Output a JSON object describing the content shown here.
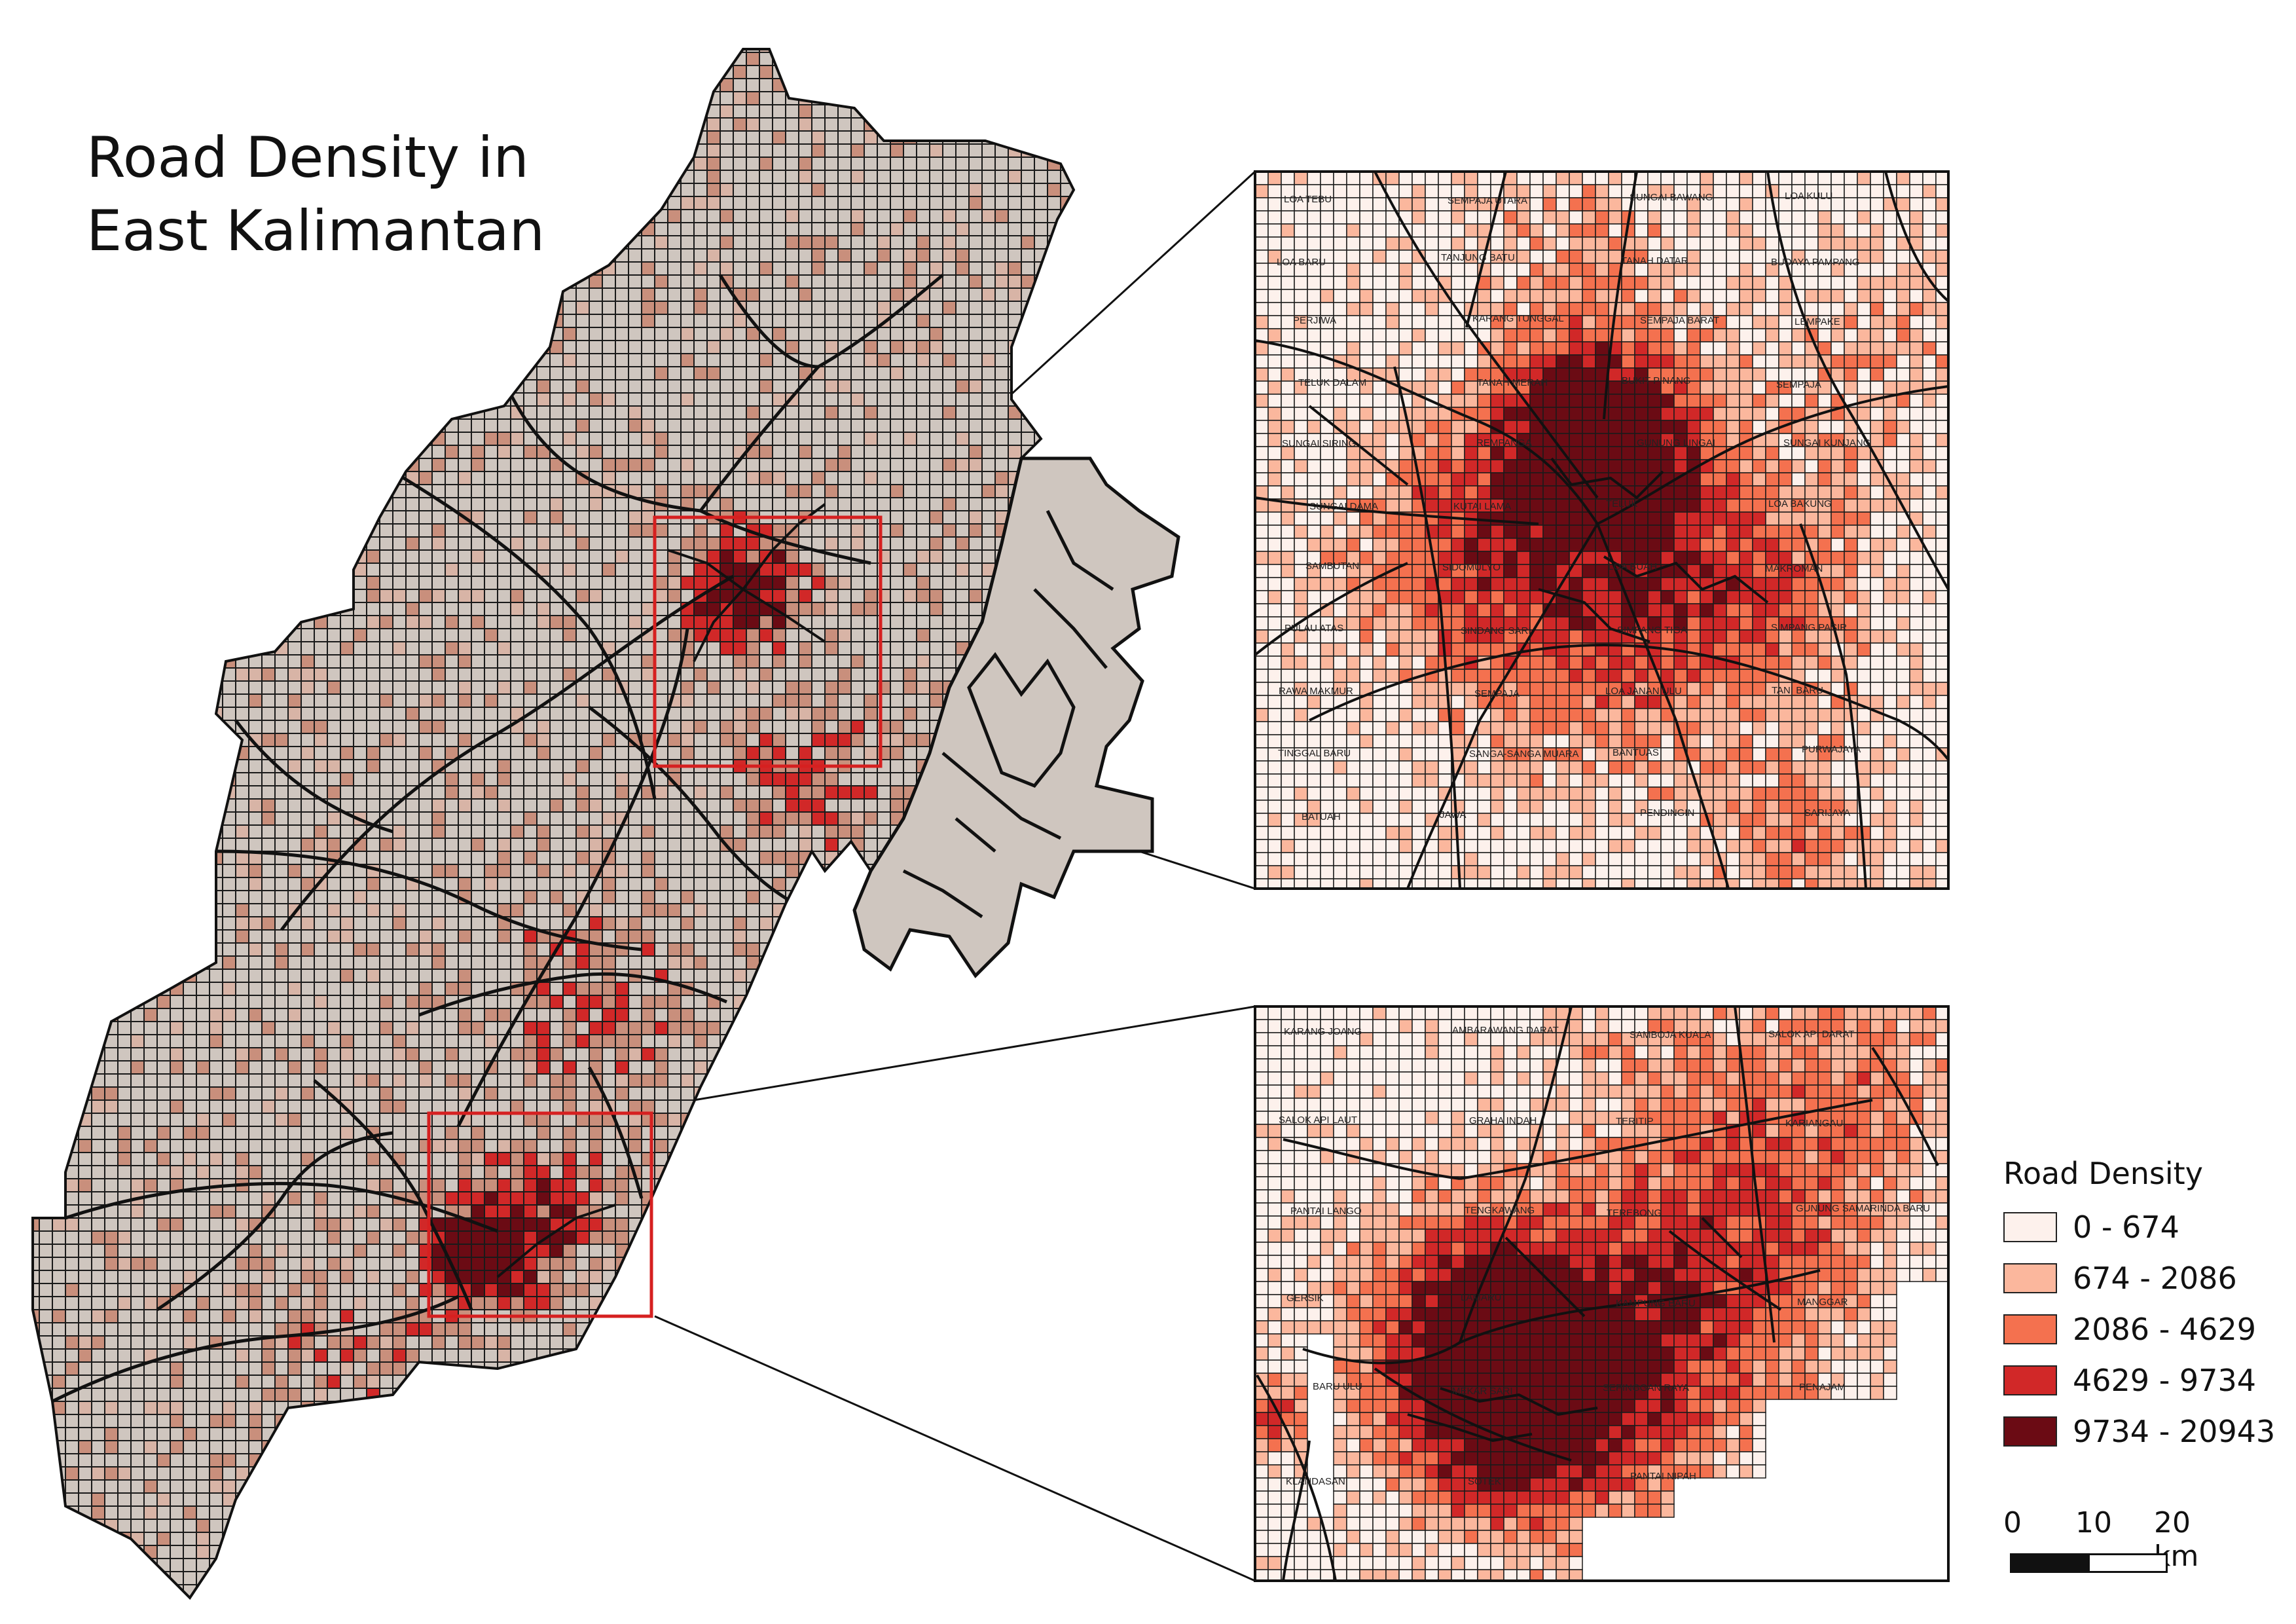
{
  "title": "Road Density in\nEast Kalimantan",
  "legend": {
    "title": "Road Density",
    "classes": [
      {
        "label": "0 - 674",
        "color": "#fdf1ec"
      },
      {
        "label": "674 - 2086",
        "color": "#fbb79d"
      },
      {
        "label": "2086 - 4629",
        "color": "#f4714f"
      },
      {
        "label": "4629 - 9734",
        "color": "#d12828"
      },
      {
        "label": "9734 - 20943",
        "color": "#6b0b14"
      }
    ]
  },
  "scale_bar": {
    "ticks": [
      "0",
      "10",
      "20 km"
    ]
  },
  "colors": {
    "grid_line": "#1a1a1a",
    "main_base": "#cfc6bf",
    "highlight_box": "#d62020"
  },
  "inset_top_labels": [
    "LOA TEBU",
    "SEMPAJA UTARA",
    "SUNGAI BAWANG",
    "LOA KULU",
    "LOA BARU",
    "TANJUNG BATU",
    "TANAH DATAR",
    "BUDAYA PAMPANG",
    "PERJIWA",
    "KARANG TUNGGAL",
    "SEMPAJA BARAT",
    "LEMPAKE",
    "TELUK DALAM",
    "TANAH MERAH",
    "BUKIT PINANG",
    "SEMPAJA",
    "SUNGAI SIRING",
    "REMPANGA",
    "GUNUNG LINGAI",
    "SUNGAI KUNJANG",
    "SUNGAI DAMA",
    "KUTAI LAMA",
    "TELUK",
    "LOA BAKUNG",
    "SAMBUTAN",
    "SIDOMULYO",
    "LOA BUAH",
    "MAKROMAN",
    "PULAU ATAS",
    "SINDANG SARI",
    "SIMPANG TIGA",
    "SIMPANG PASIR",
    "RAWA MAKMUR",
    "SEMPAJA",
    "LOA JANAN ULU",
    "TANI BARU",
    "TINGGAL BARU",
    "SANGA-SANGA MUARA",
    "BANTUAS",
    "PURWAJAYA",
    "BATUAH",
    "JAWA",
    "PENDINGIN",
    "SARIJAYA"
  ],
  "inset_bottom_labels": [
    "KARANG JOANG",
    "AMBARAWANG DARAT",
    "SAMBOJA KUALA",
    "SALOK API DARAT",
    "SALOK API LAUT",
    "GRAHA INDAH",
    "TERITIP",
    "KARIANGAU",
    "PANTAI LANGO",
    "TENGKAWANG",
    "TEREBONG",
    "GUNUNG SAMARINDA BARU",
    "GERSIK",
    "LAMARU",
    "KAMPUNG BARU",
    "MANGGAR",
    "BARU ULU",
    "MEKAR SARI",
    "SEPINGGAN RAYA",
    "PENAJAM",
    "KLANDASAN",
    "SOTEK",
    "PANTAI NIPAH"
  ]
}
